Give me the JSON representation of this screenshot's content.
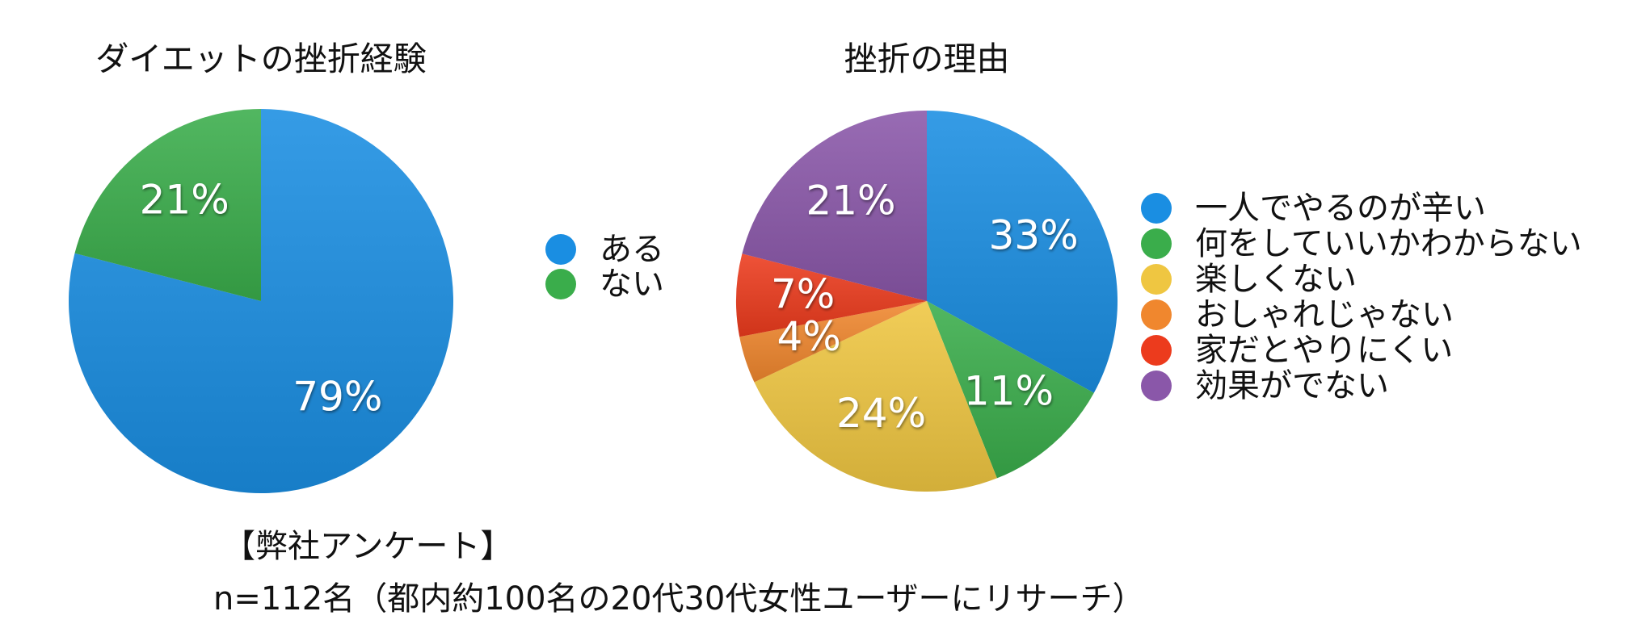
{
  "chart_data": [
    {
      "type": "pie",
      "title": "ダイエットの挫折経験",
      "categories": [
        "ある",
        "ない"
      ],
      "values": [
        79,
        21
      ],
      "value_labels": [
        "79%",
        "21%"
      ],
      "colors": [
        "#1a8ee2",
        "#3aad4b"
      ]
    },
    {
      "type": "pie",
      "title": "挫折の理由",
      "categories": [
        "一人でやるのが辛い",
        "何をしていいかわからない",
        "楽しくない",
        "おしゃれじゃない",
        "家だとやりにくい",
        "効果がでない"
      ],
      "values": [
        33,
        11,
        24,
        4,
        7,
        21
      ],
      "value_labels": [
        "33%",
        "11%",
        "24%",
        "4%",
        "7%",
        "21%"
      ],
      "colors": [
        "#1a8ee2",
        "#3aad4b",
        "#efc641",
        "#f0872e",
        "#ec3b1d",
        "#8a57a9"
      ]
    }
  ],
  "footer": {
    "source": "【弊社アンケート】",
    "note": "n=112名（都内約100名の20代30代女性ユーザーにリサーチ）"
  }
}
